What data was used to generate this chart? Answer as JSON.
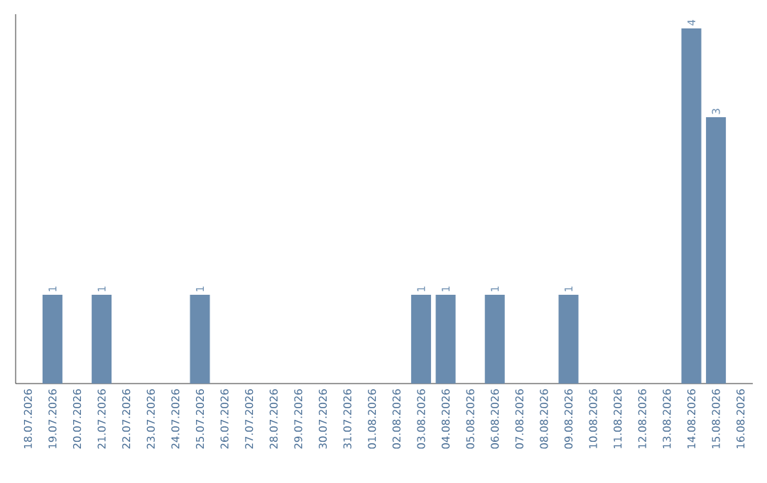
{
  "chart_data": {
    "type": "bar",
    "categories": [
      "18.07.2026",
      "19.07.2026",
      "20.07.2026",
      "21.07.2026",
      "22.07.2026",
      "23.07.2026",
      "24.07.2026",
      "25.07.2026",
      "26.07.2026",
      "27.07.2026",
      "28.07.2026",
      "29.07.2026",
      "30.07.2026",
      "31.07.2026",
      "01.08.2026",
      "02.08.2026",
      "03.08.2026",
      "04.08.2026",
      "05.08.2026",
      "06.08.2026",
      "07.08.2026",
      "08.08.2026",
      "09.08.2026",
      "10.08.2026",
      "11.08.2026",
      "12.08.2026",
      "13.08.2026",
      "14.08.2026",
      "15.08.2026",
      "16.08.2026"
    ],
    "values": [
      0,
      1,
      0,
      1,
      0,
      0,
      0,
      1,
      0,
      0,
      0,
      0,
      0,
      0,
      0,
      0,
      1,
      1,
      0,
      1,
      0,
      0,
      1,
      0,
      0,
      0,
      0,
      4,
      3,
      0
    ],
    "value_labels": [
      null,
      "1",
      null,
      "1",
      null,
      null,
      null,
      "1",
      null,
      null,
      null,
      null,
      null,
      null,
      null,
      null,
      "1",
      "1",
      null,
      "1",
      null,
      null,
      "1",
      null,
      null,
      null,
      null,
      "4",
      "3",
      null
    ],
    "color": "#6a8caf",
    "tick_labels": "x"
  }
}
